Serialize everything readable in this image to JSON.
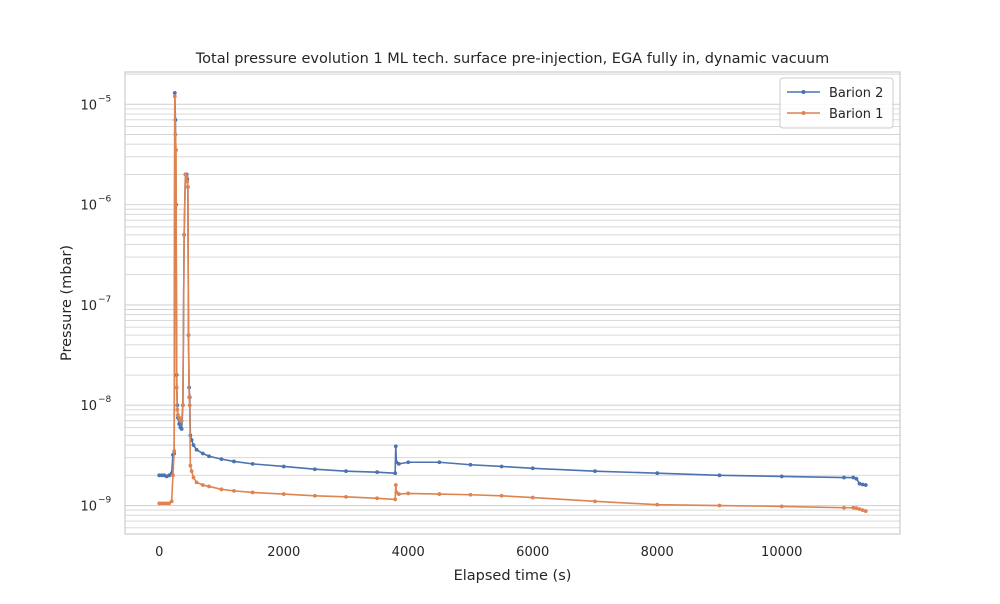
{
  "chart_data": {
    "type": "line",
    "title": "Total pressure evolution 1 ML tech. surface pre-injection, EGA fully in, dynamic vacuum",
    "xlabel": "Elapsed time (s)",
    "ylabel": "Pressure (mbar)",
    "xlim": [
      -550,
      11900
    ],
    "ylim": [
      5.2e-10,
      2.1e-05
    ],
    "yscale": "log",
    "grid": "y-major-and-minor",
    "legend_position": "top-right",
    "x_ticks": [
      {
        "value": 0,
        "label": "0"
      },
      {
        "value": 2000,
        "label": "2000"
      },
      {
        "value": 4000,
        "label": "4000"
      },
      {
        "value": 6000,
        "label": "6000"
      },
      {
        "value": 8000,
        "label": "8000"
      },
      {
        "value": 10000,
        "label": "10000"
      }
    ],
    "y_ticks": [
      {
        "value": 1e-09,
        "base": "10",
        "exp": "−9"
      },
      {
        "value": 1e-08,
        "base": "10",
        "exp": "−8"
      },
      {
        "value": 1e-07,
        "base": "10",
        "exp": "−7"
      },
      {
        "value": 1e-06,
        "base": "10",
        "exp": "−6"
      },
      {
        "value": 1e-05,
        "base": "10",
        "exp": "−5"
      }
    ],
    "series": [
      {
        "name": "Barion 2",
        "color": "#4c72b0",
        "x": [
          0,
          40,
          80,
          120,
          160,
          200,
          220,
          240,
          250,
          260,
          270,
          280,
          290,
          300,
          320,
          340,
          360,
          380,
          400,
          420,
          440,
          450,
          460,
          470,
          480,
          490,
          500,
          520,
          550,
          600,
          700,
          800,
          1000,
          1200,
          1500,
          2000,
          2500,
          3000,
          3500,
          3790,
          3800,
          3810,
          3850,
          4000,
          4500,
          5000,
          5500,
          6000,
          7000,
          8000,
          9000,
          10000,
          11000,
          11150,
          11200,
          11250,
          11300,
          11350
        ],
        "y": [
          2e-09,
          2e-09,
          2e-09,
          1.95e-09,
          2e-09,
          2.1e-09,
          3.2e-09,
          3.3e-09,
          1.3e-05,
          7e-06,
          1e-06,
          2e-08,
          1e-08,
          7.5e-09,
          6.5e-09,
          6e-09,
          5.8e-09,
          1e-08,
          5e-07,
          2e-06,
          2e-06,
          1.8e-06,
          1.5e-06,
          5e-08,
          1.5e-08,
          1.2e-08,
          5e-09,
          4.5e-09,
          4e-09,
          3.6e-09,
          3.3e-09,
          3.1e-09,
          2.9e-09,
          2.75e-09,
          2.6e-09,
          2.45e-09,
          2.3e-09,
          2.2e-09,
          2.15e-09,
          2.1e-09,
          3.9e-09,
          2.7e-09,
          2.6e-09,
          2.7e-09,
          2.7e-09,
          2.55e-09,
          2.45e-09,
          2.35e-09,
          2.2e-09,
          2.1e-09,
          2e-09,
          1.95e-09,
          1.9e-09,
          1.9e-09,
          1.85e-09,
          1.65e-09,
          1.62e-09,
          1.6e-09
        ]
      },
      {
        "name": "Barion 1",
        "color": "#dd8452",
        "x": [
          0,
          40,
          80,
          120,
          160,
          200,
          220,
          240,
          250,
          260,
          270,
          280,
          290,
          300,
          320,
          340,
          360,
          380,
          400,
          420,
          440,
          450,
          460,
          470,
          480,
          490,
          500,
          520,
          550,
          600,
          700,
          800,
          1000,
          1200,
          1500,
          2000,
          2500,
          3000,
          3500,
          3790,
          3800,
          3810,
          3850,
          4000,
          4500,
          5000,
          5500,
          6000,
          7000,
          8000,
          9000,
          10000,
          11000,
          11150,
          11200,
          11250,
          11300,
          11350
        ],
        "y": [
          1.05e-09,
          1.05e-09,
          1.05e-09,
          1.05e-09,
          1.05e-09,
          1.1e-09,
          2e-09,
          3.5e-09,
          1.2e-05,
          5e-06,
          3.5e-06,
          1.5e-08,
          9e-09,
          8e-09,
          7.5e-09,
          7e-09,
          7e-09,
          1e-08,
          5e-07,
          2e-06,
          1.9e-06,
          1.7e-06,
          1.5e-06,
          5e-08,
          1.2e-08,
          1e-08,
          2.5e-09,
          2.2e-09,
          1.9e-09,
          1.7e-09,
          1.6e-09,
          1.55e-09,
          1.45e-09,
          1.4e-09,
          1.35e-09,
          1.3e-09,
          1.25e-09,
          1.22e-09,
          1.18e-09,
          1.15e-09,
          1.6e-09,
          1.35e-09,
          1.3e-09,
          1.32e-09,
          1.3e-09,
          1.28e-09,
          1.25e-09,
          1.2e-09,
          1.1e-09,
          1.02e-09,
          1e-09,
          9.8e-10,
          9.5e-10,
          9.5e-10,
          9.4e-10,
          9.2e-10,
          9e-10,
          8.8e-10
        ]
      }
    ]
  }
}
